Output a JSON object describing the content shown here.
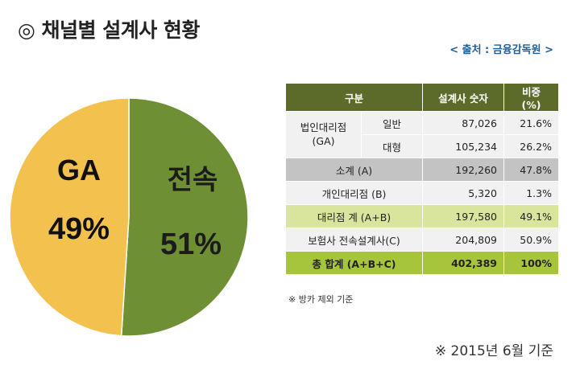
{
  "title": "◎ 채널별 설계사 현황",
  "source": "< 출처 : 금융감독원 >",
  "chart_data": {
    "type": "pie",
    "slices": [
      {
        "name": "전속",
        "value": 51,
        "label": "51%",
        "color": "#6e8f34"
      },
      {
        "name": "GA",
        "value": 49,
        "label": "49%",
        "color": "#f2c14e"
      }
    ]
  },
  "table": {
    "headers": [
      "구분",
      "설계사 숫자",
      "비중 (%)"
    ],
    "group_label": "법인대리점\n(GA)",
    "rows": [
      {
        "label": "일반",
        "count": "87,026",
        "share": "21.6%"
      },
      {
        "label": "대형",
        "count": "105,234",
        "share": "26.2%"
      },
      {
        "label": "소계 (A)",
        "count": "192,260",
        "share": "47.8%"
      },
      {
        "label": "개인대리점 (B)",
        "count": "5,320",
        "share": "1.3%"
      },
      {
        "label": "대리점 계 (A+B)",
        "count": "197,580",
        "share": "49.1%"
      },
      {
        "label": "보험사 전속설계사(C)",
        "count": "204,809",
        "share": "50.9%"
      },
      {
        "label": "총 합계 (A+B+C)",
        "count": "402,389",
        "share": "100%"
      }
    ]
  },
  "note_small": "※ 방카 제외 기준",
  "note_big": "※ 2015년 6월 기준"
}
